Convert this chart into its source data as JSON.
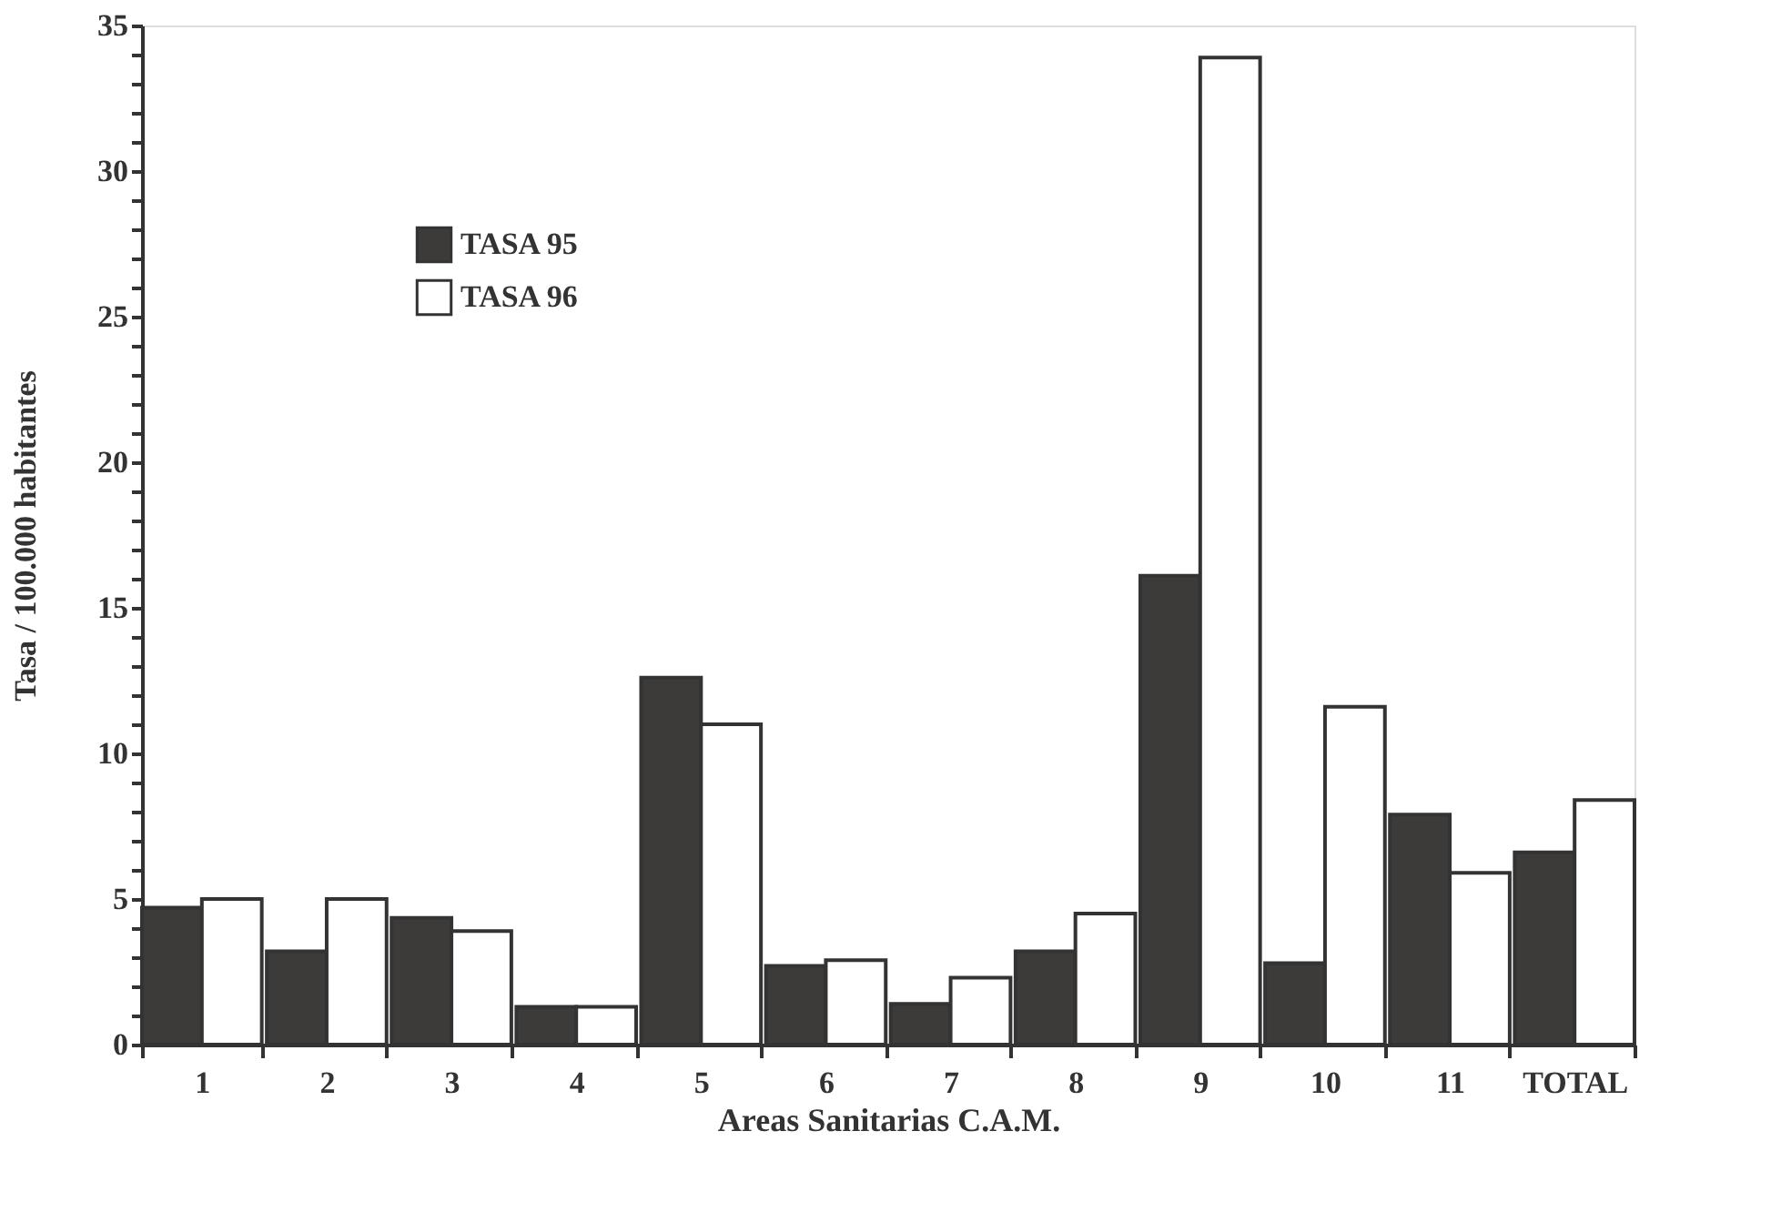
{
  "chart_data": {
    "type": "bar",
    "xlabel": "Areas Sanitarias C.A.M.",
    "ylabel": "Tasa / 100.000 habitantes",
    "categories": [
      "1",
      "2",
      "3",
      "4",
      "5",
      "6",
      "7",
      "8",
      "9",
      "10",
      "11",
      "TOTAL"
    ],
    "series": [
      {
        "name": "TASA 95",
        "color": "#3d3a3a",
        "values": [
          4.7,
          3.2,
          4.35,
          1.3,
          12.6,
          2.7,
          1.4,
          3.2,
          16.1,
          2.8,
          7.9,
          6.6
        ]
      },
      {
        "name": "TASA 96",
        "color": "#ffffff",
        "values": [
          5.0,
          5.0,
          3.9,
          1.3,
          11.0,
          2.9,
          2.3,
          4.5,
          33.9,
          11.6,
          5.9,
          8.4
        ]
      }
    ],
    "ylim": [
      0,
      35
    ],
    "yticks": [
      0,
      {
        "value": 1,
        "label": null
      },
      {
        "value": 2,
        "label": null
      },
      {
        "value": 3,
        "label": null
      },
      {
        "value": 4,
        "label": null
      },
      5,
      {
        "value": 6,
        "label": null
      },
      {
        "value": 7,
        "label": null
      },
      {
        "value": 8,
        "label": null
      },
      {
        "value": 9,
        "label": null
      },
      10,
      {
        "value": 11,
        "label": null
      },
      {
        "value": 12,
        "label": null
      },
      {
        "value": 13,
        "label": null
      },
      {
        "value": 14,
        "label": null
      },
      15,
      {
        "value": 16,
        "label": null
      },
      {
        "value": 17,
        "label": null
      },
      {
        "value": 18,
        "label": null
      },
      {
        "value": 19,
        "label": null
      },
      20,
      {
        "value": 21,
        "label": null
      },
      {
        "value": 22,
        "label": null
      },
      {
        "value": 23,
        "label": null
      },
      {
        "value": 24,
        "label": null
      },
      25,
      {
        "value": 26,
        "label": null
      },
      {
        "value": 27,
        "label": null
      },
      {
        "value": 28,
        "label": null
      },
      {
        "value": 29,
        "label": null
      },
      30,
      {
        "value": 31,
        "label": null
      },
      {
        "value": 32,
        "label": null
      },
      {
        "value": 33,
        "label": null
      },
      {
        "value": 34,
        "label": null
      },
      35
    ],
    "grid": false,
    "legend": "top left"
  }
}
